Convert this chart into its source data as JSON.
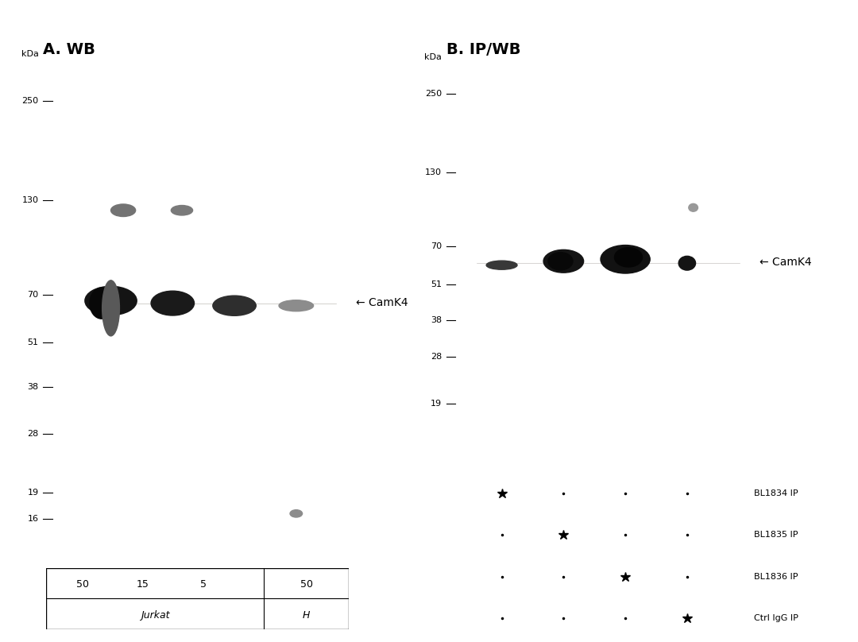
{
  "bg_color": "#d4d0cb",
  "white_bg": "#ffffff",
  "panel_a_title": "A. WB",
  "panel_b_title": "B. IP/WB",
  "kda_label": "kDa",
  "mw_markers": [
    250,
    130,
    70,
    51,
    38,
    28,
    19,
    16
  ],
  "mw_markers_b": [
    250,
    130,
    70,
    51,
    38,
    28,
    19
  ],
  "camk4_label": "← CamK4",
  "panel_a_lanes": [
    "50",
    "15",
    "5",
    "50"
  ],
  "panel_a_row1": "Jurkat",
  "panel_a_row2": "H",
  "panel_b_dots": [
    [
      true,
      false,
      false,
      false
    ],
    [
      false,
      true,
      false,
      false
    ],
    [
      false,
      false,
      true,
      false
    ],
    [
      false,
      false,
      false,
      true
    ]
  ],
  "panel_b_labels": [
    "BL1834 IP",
    "BL1835 IP",
    "BL1836 IP",
    "Ctrl IgG IP"
  ],
  "font_family": "DejaVu Sans"
}
